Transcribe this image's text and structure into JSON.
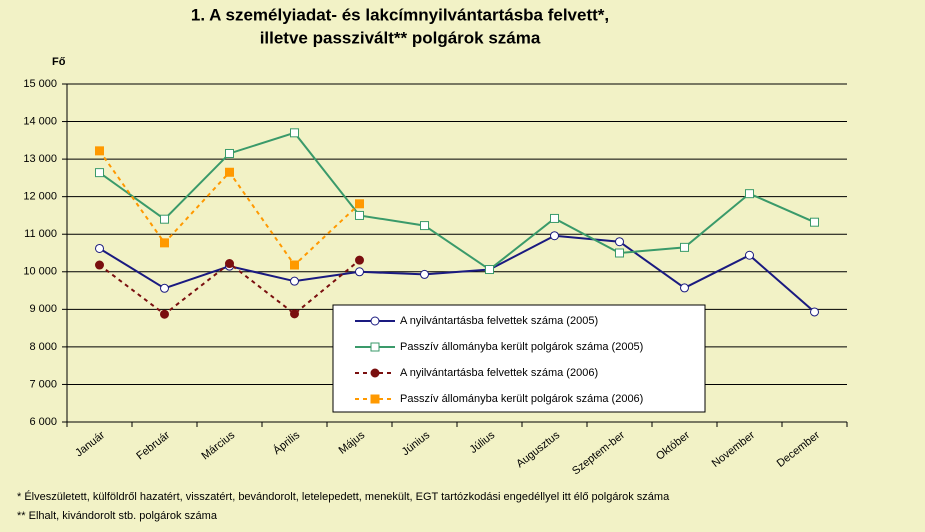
{
  "chart_data": {
    "type": "line",
    "title": [
      "1. A személyiadat- és lakcímnyilvántartásba felvett*,",
      "illetve passzivált** polgárok száma"
    ],
    "y_label": "Fő",
    "categories": [
      "Január",
      "Február",
      "Március",
      "Április",
      "Május",
      "Június",
      "Július",
      "Augusztus",
      "Szeptem-ber",
      "Október",
      "November",
      "December"
    ],
    "series": [
      {
        "name": "A nyilvántartásba felvettek száma (2005)",
        "color": "#1a1a80",
        "dashed": false,
        "marker": "circle",
        "marker_fill": "#ffffff",
        "values": [
          10620,
          9560,
          10150,
          9750,
          10000,
          9930,
          10060,
          10960,
          10800,
          9570,
          10440,
          8930
        ]
      },
      {
        "name": "Passzív állományba került polgárok száma (2005)",
        "color": "#3a9a6a",
        "dashed": false,
        "marker": "square",
        "marker_fill": "#ffffff",
        "values": [
          12640,
          11400,
          13150,
          13700,
          11500,
          11230,
          10060,
          11420,
          10500,
          10650,
          12080,
          11320
        ]
      },
      {
        "name": "A nyilvántartásba felvettek száma (2006)",
        "color": "#7a0f0f",
        "dashed": true,
        "marker": "circle",
        "marker_fill": "#7a0f0f",
        "values": [
          10180,
          8870,
          10220,
          8880,
          10310,
          null,
          null,
          null,
          null,
          null,
          null,
          null
        ]
      },
      {
        "name": "Passzív állományba került polgárok száma (2006)",
        "color": "#ff9900",
        "dashed": true,
        "marker": "square",
        "marker_fill": "#ff9900",
        "values": [
          13220,
          10770,
          12650,
          10180,
          11810,
          null,
          null,
          null,
          null,
          null,
          null,
          null
        ]
      }
    ],
    "ylim": [
      6000,
      15000
    ],
    "yticks": [
      {
        "value": 6000,
        "label": "6 000"
      },
      {
        "value": 7000,
        "label": "7 000"
      },
      {
        "value": 8000,
        "label": "8 000"
      },
      {
        "value": 9000,
        "label": "9 000"
      },
      {
        "value": 10000,
        "label": "10 000"
      },
      {
        "value": 11000,
        "label": "11 000"
      },
      {
        "value": 12000,
        "label": "12 000"
      },
      {
        "value": 13000,
        "label": "13 000"
      },
      {
        "value": 14000,
        "label": "14 000"
      },
      {
        "value": 15000,
        "label": "15 000"
      }
    ],
    "grid": true,
    "notes": [
      "* Élveszületett, külföldről hazatért, visszatért, bevándorolt, letelepedett, menekült, EGT tartózkodási engedéllyel itt élő  polgárok száma",
      "** Elhalt, kivándorolt stb. polgárok száma"
    ]
  }
}
